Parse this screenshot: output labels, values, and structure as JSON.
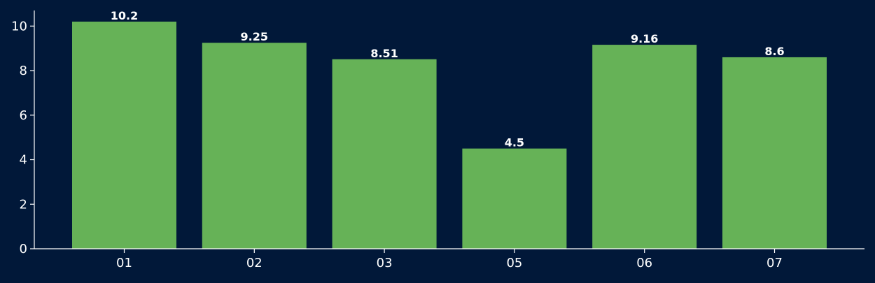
{
  "chart_data": {
    "type": "bar",
    "categories": [
      "01",
      "02",
      "03",
      "05",
      "06",
      "07"
    ],
    "series": [
      {
        "values": [
          10.2,
          9.25,
          8.51,
          4.5,
          9.16,
          8.6
        ],
        "data_labels": [
          "10.2",
          "9.25",
          "8.51",
          "4.5",
          "9.16",
          "8.6"
        ]
      }
    ],
    "title": "",
    "xlabel": "",
    "ylabel": "",
    "ylim": [
      0,
      10.7
    ],
    "yticks": [
      0,
      2,
      4,
      6,
      8,
      10
    ],
    "grid": false,
    "legend": "none",
    "colors": {
      "background": "#011839",
      "bar": "#66b257",
      "text": "#ffffff",
      "axis": "#ffffff"
    }
  }
}
